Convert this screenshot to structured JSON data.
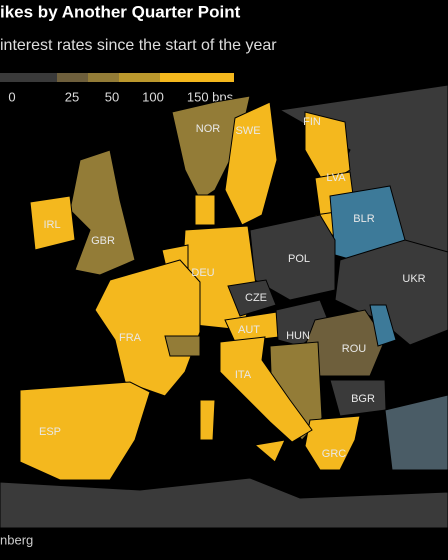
{
  "header": {
    "title": "ikes by Another Quarter Point",
    "subtitle": "interest rates since the start of the year"
  },
  "legend": {
    "items": [
      {
        "label": "0",
        "color": "#3a3a3a"
      },
      {
        "label": "25",
        "color": "#6e5f3c"
      },
      {
        "label": "50",
        "color": "#937c37"
      },
      {
        "label": "100",
        "color": "#bb982d"
      },
      {
        "label": "150 bps",
        "color": "#f4b81e"
      }
    ]
  },
  "map": {
    "countries": [
      "NOR",
      "SWE",
      "FIN",
      "LVA",
      "BLR",
      "IRL",
      "GBR",
      "DEU",
      "POL",
      "UKR",
      "CZE",
      "FRA",
      "AUT",
      "HUN",
      "ROU",
      "ITA",
      "BGR",
      "ESP",
      "GRC"
    ]
  },
  "footer": {
    "source": "nberg"
  }
}
